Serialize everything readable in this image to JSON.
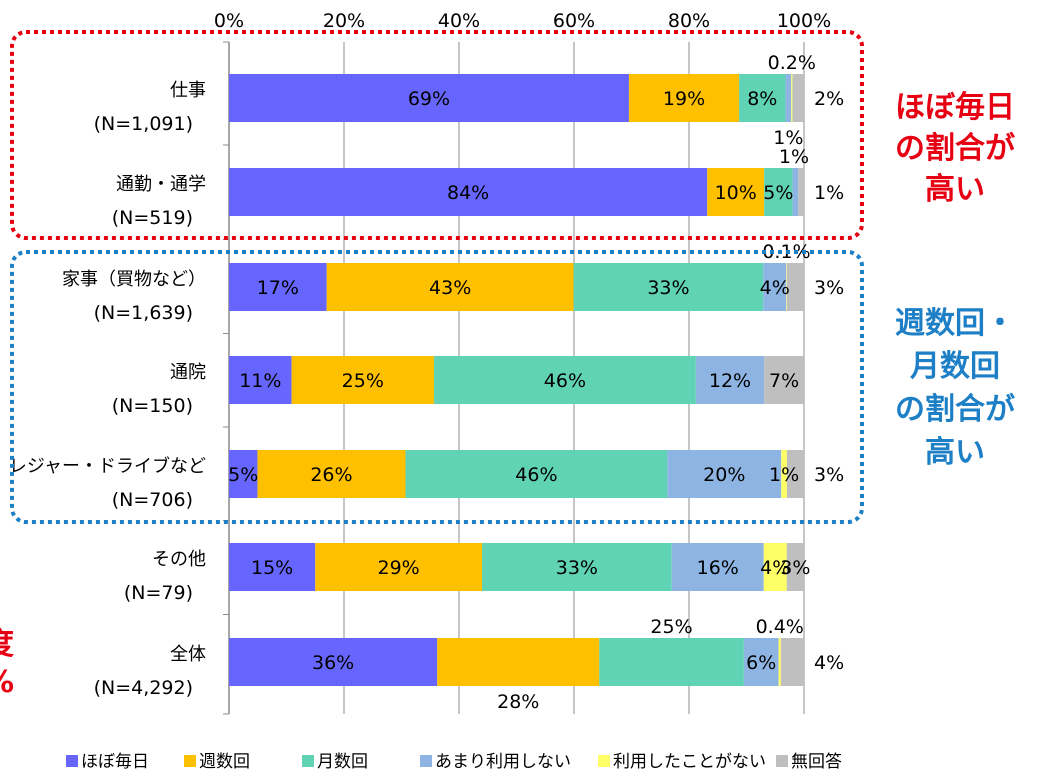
{
  "chart_data": {
    "type": "bar",
    "orientation": "horizontal",
    "stacked": "percent",
    "xlim": [
      0,
      100
    ],
    "x_ticks": [
      "0%",
      "20%",
      "40%",
      "60%",
      "80%",
      "100%"
    ],
    "legend_position": "bottom",
    "categories": [
      {
        "name": "仕事",
        "n": "(N=1,091)"
      },
      {
        "name": "通勤・通学",
        "n": "(N=519)"
      },
      {
        "name": "家事（買物など）",
        "n": "(N=1,639)"
      },
      {
        "name": "通院",
        "n": "(N=150)"
      },
      {
        "name": "レジャー・ドライブなど",
        "n": "(N=706)"
      },
      {
        "name": "その他",
        "n": "(N=79)"
      },
      {
        "name": "全体",
        "n": "(N=4,292)"
      }
    ],
    "series": [
      {
        "name": "ほぼ毎日",
        "color": "#6666ff",
        "values": [
          69,
          84,
          17,
          11,
          5,
          15,
          36
        ]
      },
      {
        "name": "週数回",
        "color": "#ffc000",
        "values": [
          19,
          10,
          43,
          25,
          26,
          29,
          28
        ]
      },
      {
        "name": "月数回",
        "color": "#5fd3b3",
        "values": [
          8,
          5,
          33,
          46,
          46,
          33,
          25
        ]
      },
      {
        "name": "あまり利用しない",
        "color": "#8eb4e3",
        "values": [
          1,
          1,
          4,
          12,
          20,
          16,
          6
        ]
      },
      {
        "name": "利用したことがない",
        "color": "#ffff66",
        "values": [
          0.2,
          0,
          0.1,
          0,
          1,
          4,
          0.4
        ]
      },
      {
        "name": "無回答",
        "color": "#bfbfbf",
        "values": [
          2,
          1,
          3,
          7,
          3,
          3,
          4
        ]
      }
    ],
    "data_labels": [
      {
        "row": 0,
        "series": 0,
        "text": "69%",
        "pos": "center"
      },
      {
        "row": 0,
        "series": 1,
        "text": "19%",
        "pos": "center"
      },
      {
        "row": 0,
        "series": 2,
        "text": "8%",
        "pos": "center"
      },
      {
        "row": 0,
        "series": 4,
        "text": "0.2%",
        "pos": "above"
      },
      {
        "row": 0,
        "series": 3,
        "text": "1%",
        "pos": "below"
      },
      {
        "row": 0,
        "series": 5,
        "text": "2%",
        "pos": "right"
      },
      {
        "row": 1,
        "series": 0,
        "text": "84%",
        "pos": "center"
      },
      {
        "row": 1,
        "series": 1,
        "text": "10%",
        "pos": "center"
      },
      {
        "row": 1,
        "series": 2,
        "text": "5%",
        "pos": "center"
      },
      {
        "row": 1,
        "series": 3,
        "text": "1%",
        "pos": "above"
      },
      {
        "row": 1,
        "series": 5,
        "text": "1%",
        "pos": "right"
      },
      {
        "row": 2,
        "series": 0,
        "text": "17%",
        "pos": "center"
      },
      {
        "row": 2,
        "series": 1,
        "text": "43%",
        "pos": "center"
      },
      {
        "row": 2,
        "series": 2,
        "text": "33%",
        "pos": "center"
      },
      {
        "row": 2,
        "series": 3,
        "text": "4%",
        "pos": "center"
      },
      {
        "row": 2,
        "series": 4,
        "text": "0.1%",
        "pos": "above"
      },
      {
        "row": 2,
        "series": 5,
        "text": "3%",
        "pos": "right"
      },
      {
        "row": 3,
        "series": 0,
        "text": "11%",
        "pos": "center"
      },
      {
        "row": 3,
        "series": 1,
        "text": "25%",
        "pos": "center"
      },
      {
        "row": 3,
        "series": 2,
        "text": "46%",
        "pos": "center"
      },
      {
        "row": 3,
        "series": 3,
        "text": "12%",
        "pos": "center"
      },
      {
        "row": 3,
        "series": 5,
        "text": "7%",
        "pos": "center"
      },
      {
        "row": 4,
        "series": 0,
        "text": "5%",
        "pos": "center"
      },
      {
        "row": 4,
        "series": 1,
        "text": "26%",
        "pos": "center"
      },
      {
        "row": 4,
        "series": 2,
        "text": "46%",
        "pos": "center"
      },
      {
        "row": 4,
        "series": 3,
        "text": "20%",
        "pos": "center"
      },
      {
        "row": 4,
        "series": 4,
        "text": "1%",
        "pos": "center"
      },
      {
        "row": 4,
        "series": 5,
        "text": "3%",
        "pos": "right"
      },
      {
        "row": 5,
        "series": 0,
        "text": "15%",
        "pos": "center"
      },
      {
        "row": 5,
        "series": 1,
        "text": "29%",
        "pos": "center"
      },
      {
        "row": 5,
        "series": 2,
        "text": "33%",
        "pos": "center"
      },
      {
        "row": 5,
        "series": 3,
        "text": "16%",
        "pos": "center"
      },
      {
        "row": 5,
        "series": 4,
        "text": "4%",
        "pos": "center"
      },
      {
        "row": 5,
        "series": 5,
        "text": "3%",
        "pos": "center"
      },
      {
        "row": 6,
        "series": 0,
        "text": "36%",
        "pos": "center"
      },
      {
        "row": 6,
        "series": 1,
        "text": "28%",
        "pos": "below"
      },
      {
        "row": 6,
        "series": 2,
        "text": "25%",
        "pos": "above"
      },
      {
        "row": 6,
        "series": 3,
        "text": "6%",
        "pos": "center"
      },
      {
        "row": 6,
        "series": 4,
        "text": "0.4%",
        "pos": "above"
      },
      {
        "row": 6,
        "series": 5,
        "text": "4%",
        "pos": "right"
      }
    ],
    "annotations": {
      "red_group": [
        "ほぼ毎日",
        "の割合が",
        "高い"
      ],
      "blue_group": [
        "週数回・",
        "月数回",
        "の割合が",
        "高い"
      ],
      "left_cutoff": [
        "度",
        "%"
      ]
    }
  }
}
